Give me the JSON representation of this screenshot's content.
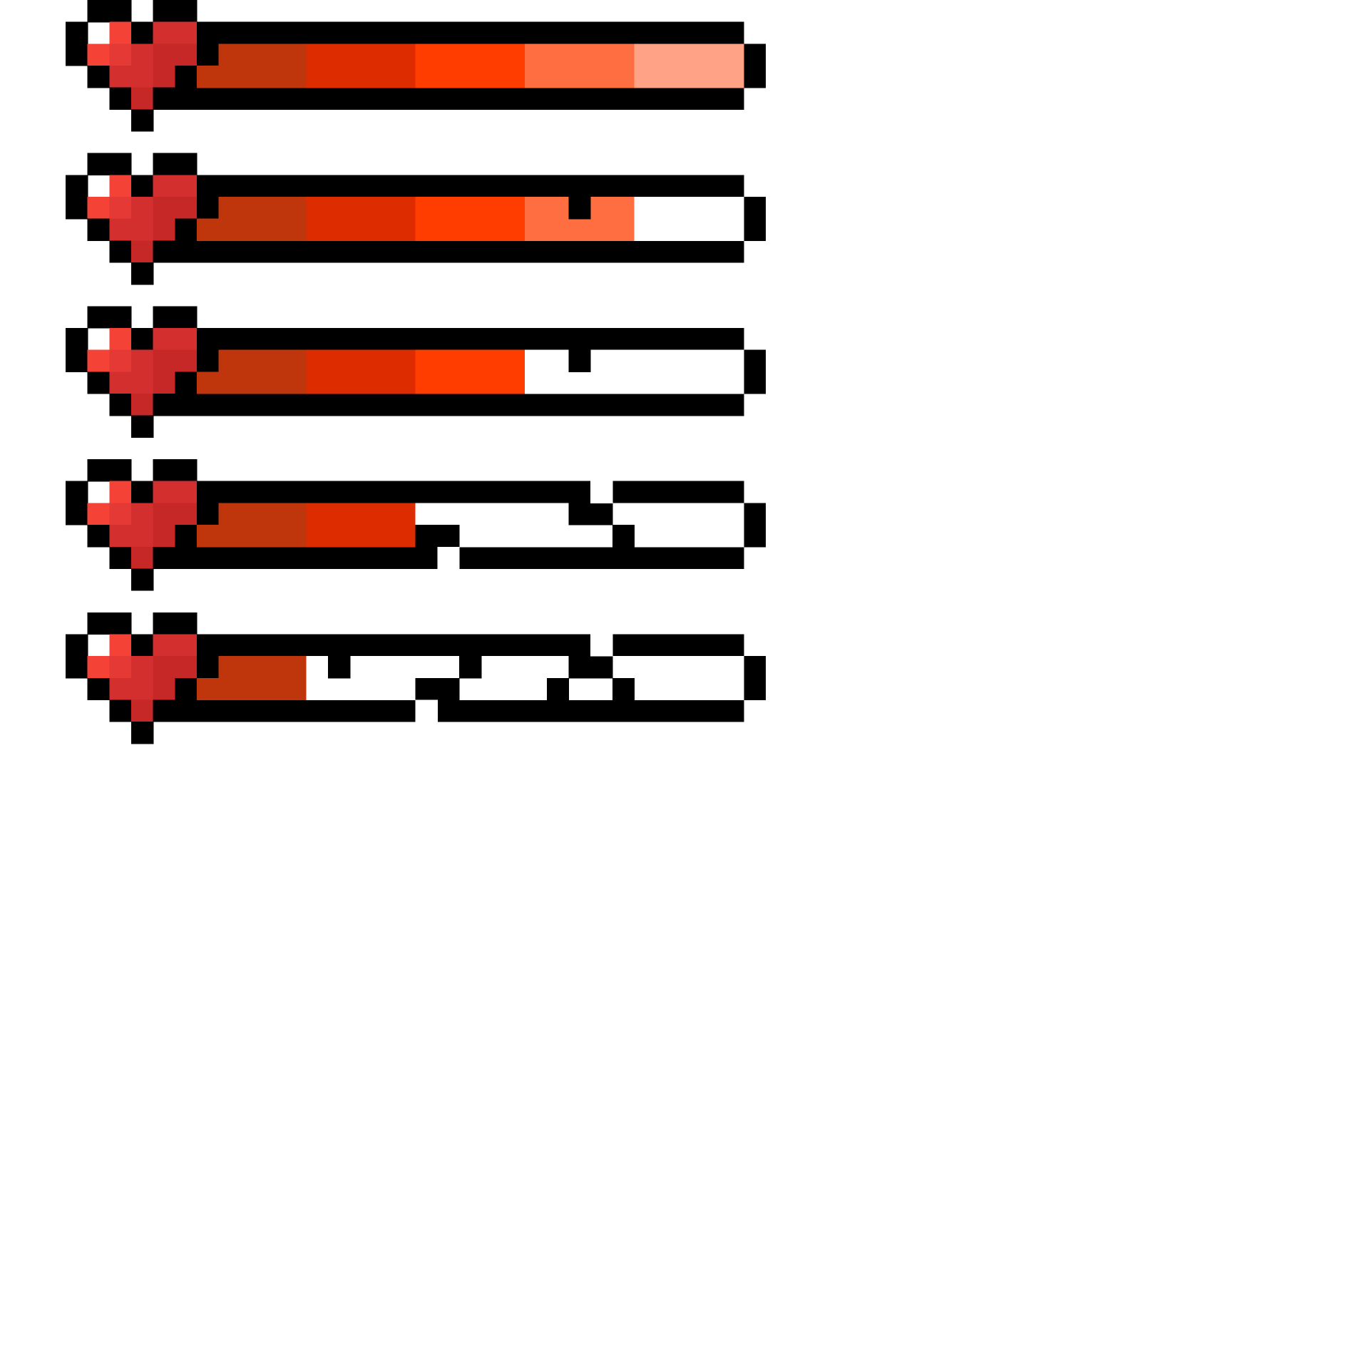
{
  "sheet": {
    "title": "",
    "background": "#ffffff"
  },
  "palette": {
    "outline": "#000000",
    "empty": "#ffffff",
    "heart": {
      "highlight": "#f44336",
      "light": "#e53935",
      "mid": "#d32f2f",
      "dark": "#c62828"
    },
    "segments": [
      "#bf360c",
      "#dd2c00",
      "#ff3d00",
      "#ff6e40",
      "#ffa286"
    ]
  },
  "health_bars": [
    {
      "label": "",
      "icon": "heart-icon",
      "filled_segments": 5,
      "total_segments": 5,
      "fill_fraction": 1.0,
      "cracks": 0
    },
    {
      "label": "",
      "icon": "heart-icon",
      "filled_segments": 4,
      "total_segments": 5,
      "fill_fraction": 0.8,
      "cracks": 1
    },
    {
      "label": "",
      "icon": "heart-icon",
      "filled_segments": 3,
      "total_segments": 5,
      "fill_fraction": 0.6,
      "cracks": 1
    },
    {
      "label": "",
      "icon": "heart-icon",
      "filled_segments": 2,
      "total_segments": 5,
      "fill_fraction": 0.4,
      "cracks": 3
    },
    {
      "label": "",
      "icon": "heart-icon",
      "filled_segments": 1,
      "total_segments": 5,
      "fill_fraction": 0.2,
      "cracks": 5
    }
  ]
}
